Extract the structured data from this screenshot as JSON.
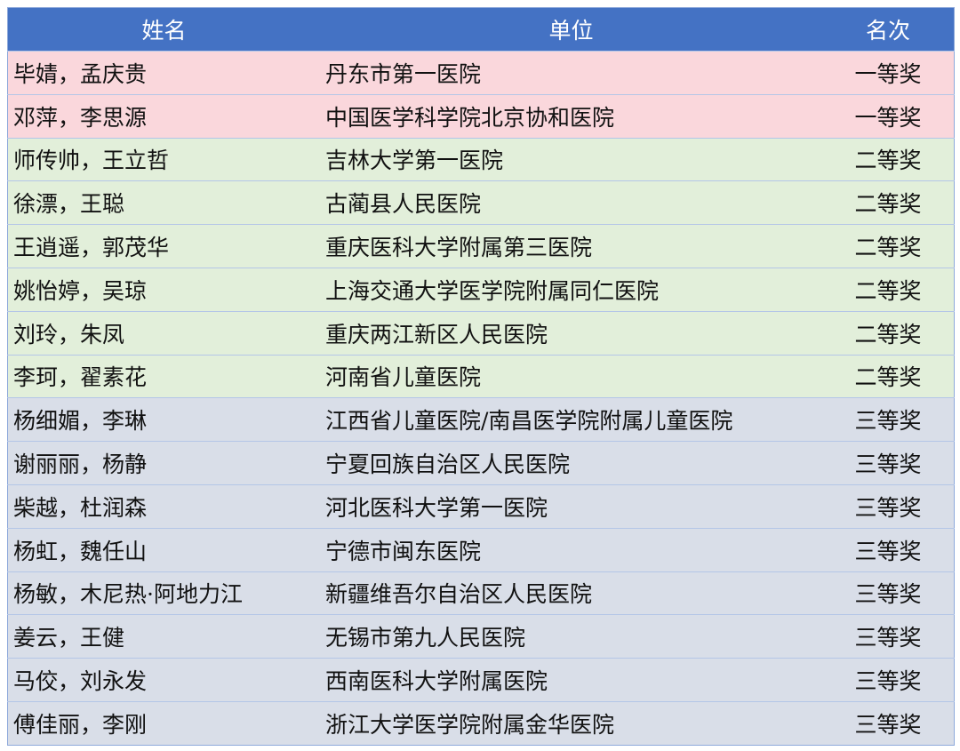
{
  "headers": [
    "姓名",
    "单位",
    "名次"
  ],
  "colors": {
    "header": "#4472C4",
    "first_prize": "#FAD7DC",
    "second_prize": "#E2EFDA",
    "third_prize": "#D9DEE8"
  },
  "rows": [
    {
      "name": "毕婧，孟庆贵",
      "unit": "丹东市第一医院",
      "rank": "一等奖",
      "tier": 1
    },
    {
      "name": "邓萍，李思源",
      "unit": "中国医学科学院北京协和医院",
      "rank": "一等奖",
      "tier": 1
    },
    {
      "name": "师传帅，王立哲",
      "unit": "吉林大学第一医院",
      "rank": "二等奖",
      "tier": 2
    },
    {
      "name": "徐漂，王聪",
      "unit": "古蔺县人民医院",
      "rank": "二等奖",
      "tier": 2
    },
    {
      "name": "王逍遥，郭茂华",
      "unit": "重庆医科大学附属第三医院",
      "rank": "二等奖",
      "tier": 2
    },
    {
      "name": "姚怡婷，吴琼",
      "unit": "上海交通大学医学院附属同仁医院",
      "rank": "二等奖",
      "tier": 2
    },
    {
      "name": "刘玲，朱凤",
      "unit": "重庆两江新区人民医院",
      "rank": "二等奖",
      "tier": 2
    },
    {
      "name": "李珂，翟素花",
      "unit": "河南省儿童医院",
      "rank": "二等奖",
      "tier": 2
    },
    {
      "name": "杨细媚，李琳",
      "unit": "江西省儿童医院/南昌医学院附属儿童医院",
      "rank": "三等奖",
      "tier": 3
    },
    {
      "name": "谢丽丽，杨静",
      "unit": "宁夏回族自治区人民医院",
      "rank": "三等奖",
      "tier": 3
    },
    {
      "name": "柴越，杜润森",
      "unit": "河北医科大学第一医院",
      "rank": "三等奖",
      "tier": 3
    },
    {
      "name": "杨虹，魏任山",
      "unit": "宁德市闽东医院",
      "rank": "三等奖",
      "tier": 3
    },
    {
      "name": "杨敏，木尼热·阿地力江",
      "unit": "新疆维吾尔自治区人民医院",
      "rank": "三等奖",
      "tier": 3
    },
    {
      "name": "姜云，王健",
      "unit": "无锡市第九人民医院",
      "rank": "三等奖",
      "tier": 3
    },
    {
      "name": "马佼，刘永发",
      "unit": "西南医科大学附属医院",
      "rank": "三等奖",
      "tier": 3
    },
    {
      "name": "傅佳丽，李刚",
      "unit": "浙江大学医学院附属金华医院",
      "rank": "三等奖",
      "tier": 3
    }
  ]
}
